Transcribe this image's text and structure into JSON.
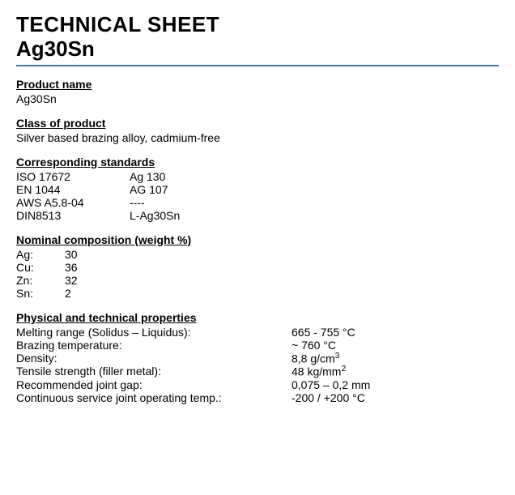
{
  "title": {
    "main": "TECHNICAL SHEET",
    "sub": "Ag30Sn"
  },
  "sections": {
    "productName": {
      "heading": "Product name",
      "value": "Ag30Sn"
    },
    "classOfProduct": {
      "heading": "Class of product",
      "value": "Silver based brazing alloy, cadmium-free"
    },
    "standards": {
      "heading": "Corresponding standards",
      "rows": [
        {
          "std": "ISO 17672",
          "val": "Ag 130"
        },
        {
          "std": "EN 1044",
          "val": "AG 107"
        },
        {
          "std": "AWS A5.8-04",
          "val": "----"
        },
        {
          "std": "DIN8513",
          "val": "L-Ag30Sn"
        }
      ]
    },
    "composition": {
      "heading": "Nominal composition (weight %)",
      "rows": [
        {
          "el": "Ag:",
          "pct": "30"
        },
        {
          "el": "Cu:",
          "pct": "36"
        },
        {
          "el": "Zn:",
          "pct": "32"
        },
        {
          "el": "Sn:",
          "pct": "2"
        }
      ]
    },
    "properties": {
      "heading": "Physical and technical properties",
      "rows": [
        {
          "label": "Melting range (Solidus – Liquidus):",
          "value": "665 - 755 °C",
          "sup": ""
        },
        {
          "label": "Brazing temperature:",
          "value": "~ 760 °C",
          "sup": ""
        },
        {
          "label": "Density:",
          "value": "8,8  g/cm",
          "sup": "3"
        },
        {
          "label": "Tensile strength (filler metal):",
          "value": "48 kg/mm",
          "sup": "2"
        },
        {
          "label": "Recommended joint gap:",
          "value": "0,075 – 0,2 mm",
          "sup": ""
        },
        {
          "label": "Continuous service joint operating temp.:",
          "value": "-200 / +200 °C",
          "sup": ""
        }
      ]
    }
  },
  "colors": {
    "rule": "#4a7ba6",
    "text": "#000000",
    "background": "#ffffff"
  }
}
